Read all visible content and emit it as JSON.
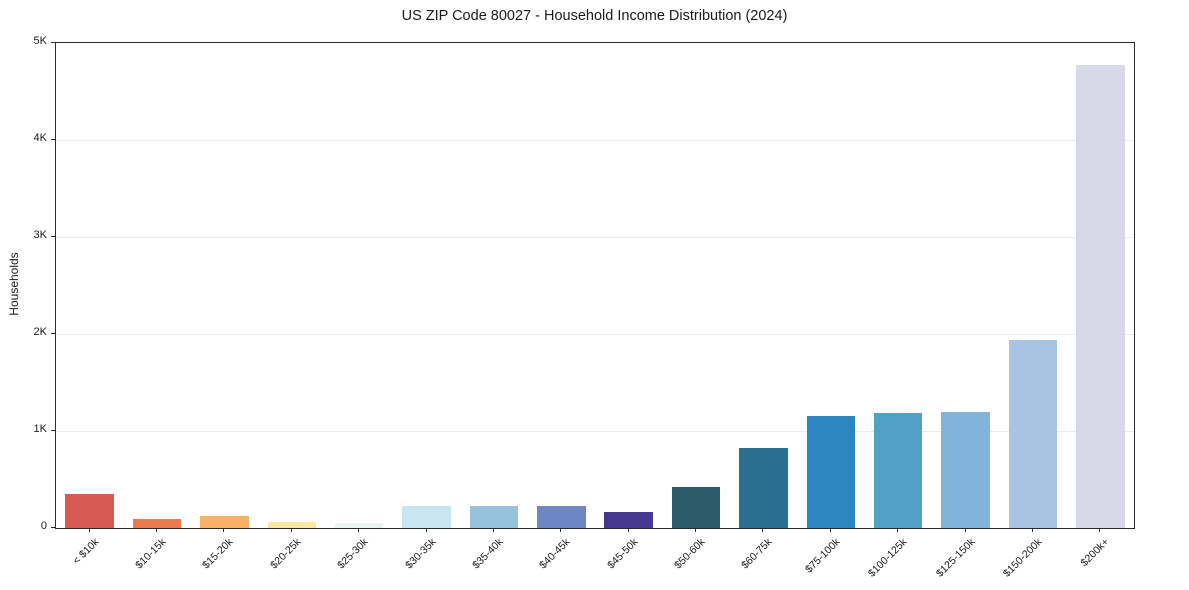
{
  "chart_data": {
    "type": "bar",
    "title": "US ZIP Code 80027 - Household Income Distribution (2024)",
    "xlabel": "",
    "ylabel": "Households",
    "categories": [
      "< $10k",
      "$10-15k",
      "$15-20k",
      "$20-25k",
      "$25-30k",
      "$30-35k",
      "$35-40k",
      "$40-45k",
      "$45-50k",
      "$50-60k",
      "$60-75k",
      "$75-100k",
      "$100-125k",
      "$125-150k",
      "$150-200k",
      "$200k+"
    ],
    "values": [
      350,
      90,
      120,
      60,
      55,
      230,
      230,
      230,
      165,
      420,
      825,
      1150,
      1185,
      1200,
      1940,
      4770
    ],
    "bar_colors": [
      "#d95a52",
      "#ec7a51",
      "#f9b166",
      "#fce8a2",
      "#e9f5ee",
      "#c9e5f0",
      "#96c1dd",
      "#6d87c5",
      "#46398f",
      "#2d5a67",
      "#2b6f8e",
      "#2e86c1",
      "#52a0c6",
      "#83b3d8",
      "#a9c3e3",
      "#d8d9e8"
    ],
    "ylim": [
      0,
      5000
    ],
    "yticks": [
      "0",
      "1K",
      "2K",
      "3K",
      "4K",
      "5K"
    ],
    "grid": "horizontal",
    "legend": "none"
  }
}
